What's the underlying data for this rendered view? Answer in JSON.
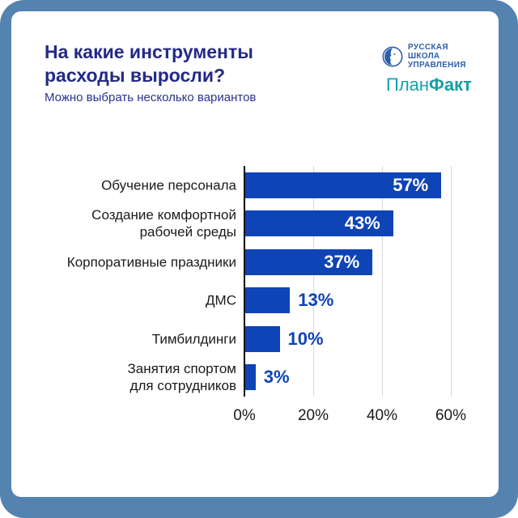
{
  "header": {
    "title": "На какие инструменты\nрасходы выросли?",
    "subtitle": "Можно выбрать несколько вариантов"
  },
  "logos": {
    "rsu": {
      "line1": "РУССКАЯ",
      "line2": "ШКОЛА",
      "line3": "УПРАВЛЕНИЯ",
      "color": "#2D5FA9"
    },
    "planfact": {
      "part1": "План",
      "part2": "Факт",
      "color": "#18A0A4"
    }
  },
  "colors": {
    "frame": "#5583B0",
    "card_background": "#ffffff",
    "bar": "#0E44B5",
    "title": "#232A86",
    "gridline": "#D8D8D8",
    "axis": "#000000",
    "tick_label": "#1A1A1A"
  },
  "chart_data": {
    "type": "bar",
    "orientation": "horizontal",
    "title": "На какие инструменты расходы выросли?",
    "subtitle": "Можно выбрать несколько вариантов",
    "categories": [
      "Обучение персонала",
      "Создание комфортной\nрабочей среды",
      "Корпоративные праздники",
      "ДМС",
      "Тимбилдинги",
      "Занятия спортом\nдля сотрудников"
    ],
    "values": [
      57,
      43,
      37,
      13,
      10,
      3
    ],
    "value_labels": [
      "57%",
      "43%",
      "37%",
      "13%",
      "10%",
      "3%"
    ],
    "x_ticks": [
      "0%",
      "20%",
      "40%",
      "60%"
    ],
    "x_tick_values": [
      0,
      20,
      40,
      60
    ],
    "xlim": [
      0,
      60
    ],
    "grid": true,
    "legend": false,
    "bar_color": "#0E44B5",
    "value_label_inside_color": "#ffffff",
    "value_label_outside_color": "#0E44B5",
    "label_inside_threshold": 20
  }
}
